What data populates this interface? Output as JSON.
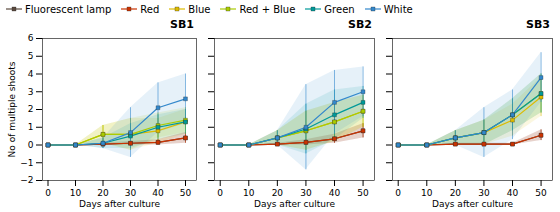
{
  "chart_data": [
    {
      "type": "line",
      "title": "SB1",
      "legend": "top",
      "xlabel": "Days after culture",
      "ylabel": "No of multiple shoots",
      "x": [
        0,
        10,
        20,
        30,
        40,
        50
      ],
      "xlim": [
        -2,
        54
      ],
      "xticks": [
        0,
        10,
        20,
        30,
        40,
        50
      ],
      "ylim": [
        -2,
        6
      ],
      "yticks": [
        -2,
        -1,
        0,
        1,
        2,
        3,
        4,
        5,
        6
      ],
      "marker": "square",
      "series": [
        {
          "name": "Fluorescent lamp",
          "color": "#5B4A3F",
          "values": [
            0,
            0,
            0.05,
            0.1,
            0.15,
            0.4
          ],
          "errors": [
            0,
            0,
            0.05,
            0.1,
            0.15,
            0.3
          ]
        },
        {
          "name": "Red",
          "color": "#CC3300",
          "values": [
            0,
            0,
            0.05,
            0.1,
            0.15,
            0.4
          ],
          "errors": [
            0,
            0,
            0.05,
            0.1,
            0.15,
            0.3
          ]
        },
        {
          "name": "Blue",
          "color": "#DDBB00",
          "values": [
            0,
            0,
            0.6,
            0.6,
            0.8,
            1.3
          ],
          "errors": [
            0,
            0,
            0.5,
            0.9,
            0.7,
            0.7
          ]
        },
        {
          "name": "Red + Blue",
          "color": "#AACC00",
          "values": [
            0,
            0,
            0.6,
            0.6,
            1.1,
            1.4
          ],
          "errors": [
            0,
            0,
            0.5,
            0.9,
            0.7,
            0.7
          ]
        },
        {
          "name": "Green",
          "color": "#009999",
          "values": [
            0,
            0,
            0.1,
            0.5,
            1.0,
            1.3
          ],
          "errors": [
            0,
            0,
            0.3,
            0.7,
            0.7,
            0.7
          ]
        },
        {
          "name": "White",
          "color": "#3388CC",
          "values": [
            0,
            0,
            0.1,
            0.7,
            2.1,
            2.6
          ],
          "errors": [
            0,
            0,
            0.3,
            1.4,
            1.4,
            1.4
          ]
        }
      ]
    },
    {
      "type": "line",
      "title": "SB2",
      "tick_labels": "x",
      "xlabel": "Days after culture",
      "x": [
        0,
        10,
        20,
        30,
        40,
        50
      ],
      "xlim": [
        -2,
        54
      ],
      "xticks": [
        0,
        10,
        20,
        30,
        40,
        50
      ],
      "ylim": [
        -2,
        6
      ],
      "yticks": [
        -2,
        -1,
        0,
        1,
        2,
        3,
        4,
        5,
        6
      ],
      "marker": "square",
      "series": [
        {
          "name": "Fluorescent lamp",
          "color": "#5B4A3F",
          "values": [
            0,
            0,
            0.05,
            0.15,
            0.35,
            0.8
          ],
          "errors": [
            0,
            0,
            0.05,
            0.15,
            0.25,
            0.4
          ]
        },
        {
          "name": "Red",
          "color": "#CC3300",
          "values": [
            0,
            0,
            0.05,
            0.15,
            0.35,
            0.8
          ],
          "errors": [
            0,
            0,
            0.05,
            0.15,
            0.25,
            0.4
          ]
        },
        {
          "name": "Blue",
          "color": "#DDBB00",
          "values": [
            0,
            0,
            0.4,
            0.8,
            1.3,
            1.9
          ],
          "errors": [
            0,
            0,
            0.4,
            1.1,
            1.1,
            0.9
          ]
        },
        {
          "name": "Red + Blue",
          "color": "#AACC00",
          "values": [
            0,
            0,
            0.4,
            0.8,
            1.3,
            1.9
          ],
          "errors": [
            0,
            0,
            0.4,
            1.1,
            1.1,
            0.9
          ]
        },
        {
          "name": "Green",
          "color": "#009999",
          "values": [
            0,
            0,
            0.4,
            0.9,
            1.7,
            2.4
          ],
          "errors": [
            0,
            0,
            0.4,
            1.4,
            1.4,
            0.9
          ]
        },
        {
          "name": "White",
          "color": "#3388CC",
          "values": [
            0,
            0,
            0.4,
            1.0,
            2.4,
            3.0
          ],
          "errors": [
            0,
            0,
            0.4,
            2.4,
            1.8,
            1.4
          ]
        }
      ]
    },
    {
      "type": "line",
      "title": "SB3",
      "tick_labels": "x",
      "xlabel": "Days after culture",
      "x": [
        0,
        10,
        20,
        30,
        40,
        50
      ],
      "xlim": [
        -2,
        54
      ],
      "xticks": [
        0,
        10,
        20,
        30,
        40,
        50
      ],
      "ylim": [
        -2,
        6
      ],
      "yticks": [
        -2,
        -1,
        0,
        1,
        2,
        3,
        4,
        5,
        6
      ],
      "marker": "square",
      "series": [
        {
          "name": "Fluorescent lamp",
          "color": "#5B4A3F",
          "values": [
            0,
            0,
            0.05,
            0.05,
            0.05,
            0.55
          ],
          "errors": [
            0,
            0,
            0.05,
            0.05,
            0.05,
            0.3
          ]
        },
        {
          "name": "Red",
          "color": "#CC3300",
          "values": [
            0,
            0,
            0.05,
            0.05,
            0.05,
            0.55
          ],
          "errors": [
            0,
            0,
            0.05,
            0.05,
            0.05,
            0.3
          ]
        },
        {
          "name": "Blue",
          "color": "#DDBB00",
          "values": [
            0,
            0,
            0.4,
            0.7,
            1.4,
            2.7
          ],
          "errors": [
            0,
            0,
            0.4,
            0.7,
            0.9,
            1.1
          ]
        },
        {
          "name": "Red + Blue",
          "color": "#AACC00",
          "values": [
            0,
            0,
            0.4,
            0.7,
            1.7,
            2.9
          ],
          "errors": [
            0,
            0,
            0.4,
            0.7,
            0.9,
            1.1
          ]
        },
        {
          "name": "Green",
          "color": "#009999",
          "values": [
            0,
            0,
            0.4,
            0.7,
            1.7,
            2.9
          ],
          "errors": [
            0,
            0,
            0.4,
            0.7,
            0.9,
            1.1
          ]
        },
        {
          "name": "White",
          "color": "#3388CC",
          "values": [
            0,
            0,
            0.4,
            0.7,
            1.7,
            3.8
          ],
          "errors": [
            0,
            0,
            0.4,
            1.4,
            1.4,
            1.4
          ]
        }
      ]
    }
  ]
}
